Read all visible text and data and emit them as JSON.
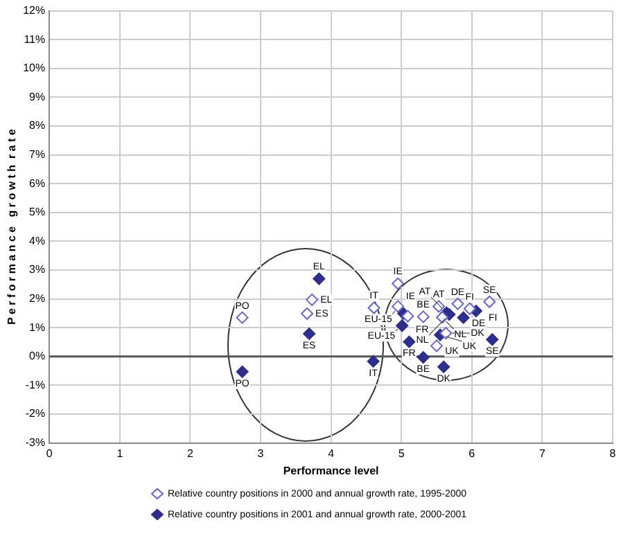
{
  "chart_data": {
    "type": "scatter",
    "xlabel": "Performance level",
    "ylabel": "P e r f o r m a n c e   g r o w t h  r a t e",
    "xlim": [
      0,
      8
    ],
    "xticks": [
      0,
      1,
      2,
      3,
      4,
      5,
      6,
      7,
      8
    ],
    "ylim": [
      -3,
      12
    ],
    "yticks": [
      {
        "value": -3,
        "label": "-3%"
      },
      {
        "value": -2,
        "label": "-2%"
      },
      {
        "value": -1,
        "label": "-1%"
      },
      {
        "value": 0,
        "label": "0%"
      },
      {
        "value": 1,
        "label": "1%"
      },
      {
        "value": 2,
        "label": "2%"
      },
      {
        "value": 3,
        "label": "3%"
      },
      {
        "value": 4,
        "label": "4%"
      },
      {
        "value": 5,
        "label": "5%"
      },
      {
        "value": 6,
        "label": "6%"
      },
      {
        "value": 7,
        "label": "7%"
      },
      {
        "value": 8,
        "label": "8%"
      },
      {
        "value": 9,
        "label": "9%"
      },
      {
        "value": 10,
        "label": "10%"
      },
      {
        "value": 11,
        "label": "11%"
      },
      {
        "value": 12,
        "label": "12%"
      }
    ],
    "grid": true,
    "legend": "bottom",
    "marker": "diamond",
    "ref_lines": [
      {
        "axis": "y",
        "value": 0,
        "color": "#555555"
      }
    ],
    "series": [
      {
        "name": "Relative country positions in 2000 and annual growth rate, 1995-2000",
        "color": "#6666cc",
        "x": [
          2.74,
          3.73,
          3.66,
          4.61,
          4.95,
          4.95,
          5.09,
          5.31,
          5.53,
          5.58,
          5.8,
          5.97,
          6.25,
          5.5,
          5.63
        ],
        "values": [
          1.35,
          1.97,
          1.49,
          1.69,
          2.53,
          1.74,
          1.4,
          1.38,
          1.74,
          1.36,
          1.83,
          1.66,
          1.9,
          0.37,
          0.81
        ],
        "value_labels": [
          "PO",
          "EL",
          "ES",
          "IT",
          "IE",
          "EU-15",
          "FR",
          "BE",
          "AT",
          "NL",
          "DE",
          "FI",
          "SE",
          "UK",
          "DK"
        ]
      },
      {
        "name": "Relative country positions in 2001 and annual growth rate, 2000-2001",
        "color": "#2e2e8c",
        "x": [
          2.74,
          3.83,
          3.69,
          4.6,
          5.03,
          5.01,
          5.11,
          5.31,
          5.55,
          5.6,
          5.64,
          5.68,
          5.88,
          6.06,
          6.29
        ],
        "values": [
          -0.53,
          2.7,
          0.79,
          -0.17,
          1.49,
          1.07,
          0.51,
          -0.03,
          0.75,
          -0.36,
          1.52,
          1.46,
          1.35,
          1.58,
          0.59
        ],
        "value_labels": [
          "PO",
          "EL",
          "ES",
          "IT",
          "IE",
          "EU-15",
          "FR",
          "BE",
          "UK",
          "DK",
          "AT",
          "NL",
          "DE",
          "FI",
          "SE"
        ]
      }
    ]
  }
}
